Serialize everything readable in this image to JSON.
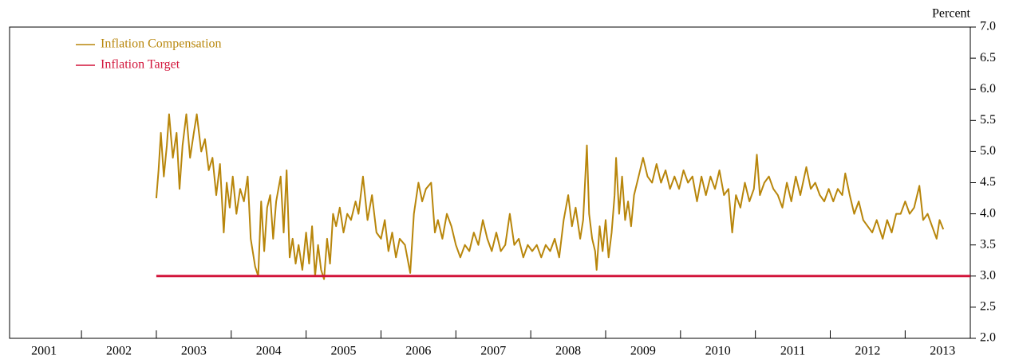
{
  "chart_data": {
    "type": "line",
    "y_label": "Percent",
    "xlim": [
      2001.04,
      2013.87
    ],
    "ylim": [
      2,
      7
    ],
    "xticks": [
      {
        "value": 2001.5,
        "label": "2001"
      },
      {
        "value": 2002.5,
        "label": "2002"
      },
      {
        "value": 2003.5,
        "label": "2003"
      },
      {
        "value": 2004.5,
        "label": "2004"
      },
      {
        "value": 2005.5,
        "label": "2005"
      },
      {
        "value": 2006.5,
        "label": "2006"
      },
      {
        "value": 2007.5,
        "label": "2007"
      },
      {
        "value": 2008.5,
        "label": "2008"
      },
      {
        "value": 2009.5,
        "label": "2009"
      },
      {
        "value": 2010.5,
        "label": "2010"
      },
      {
        "value": 2011.5,
        "label": "2011"
      },
      {
        "value": 2012.5,
        "label": "2012"
      },
      {
        "value": 2013.5,
        "label": "2013"
      }
    ],
    "x_boundary_ticks": [
      2002,
      2003,
      2004,
      2005,
      2006,
      2007,
      2008,
      2009,
      2010,
      2011,
      2012,
      2013
    ],
    "yticks": [
      {
        "value": 2,
        "label": "2.0"
      },
      {
        "value": 2.5,
        "label": "2.5"
      },
      {
        "value": 3,
        "label": "3.0"
      },
      {
        "value": 3.5,
        "label": "3.5"
      },
      {
        "value": 4,
        "label": "4.0"
      },
      {
        "value": 4.5,
        "label": "4.5"
      },
      {
        "value": 5,
        "label": "5.0"
      },
      {
        "value": 5.5,
        "label": "5.5"
      },
      {
        "value": 6,
        "label": "6.0"
      },
      {
        "value": 6.5,
        "label": "6.5"
      },
      {
        "value": 7,
        "label": "7.0"
      }
    ],
    "legend": "upper left",
    "series": [
      {
        "name": "Inflation Compensation",
        "color": "#b8860b",
        "x": [
          2003.0,
          2003.03,
          2003.06,
          2003.1,
          2003.14,
          2003.17,
          2003.22,
          2003.27,
          2003.31,
          2003.35,
          2003.4,
          2003.45,
          2003.5,
          2003.54,
          2003.6,
          2003.65,
          2003.7,
          2003.75,
          2003.8,
          2003.85,
          2003.9,
          2003.94,
          2003.98,
          2004.02,
          2004.07,
          2004.12,
          2004.17,
          2004.22,
          2004.26,
          2004.32,
          2004.36,
          2004.4,
          2004.44,
          2004.48,
          2004.52,
          2004.56,
          2004.6,
          2004.66,
          2004.7,
          2004.74,
          2004.78,
          2004.82,
          2004.86,
          2004.9,
          2004.95,
          2005.0,
          2005.04,
          2005.08,
          2005.12,
          2005.16,
          2005.2,
          2005.24,
          2005.28,
          2005.32,
          2005.36,
          2005.4,
          2005.45,
          2005.5,
          2005.55,
          2005.6,
          2005.66,
          2005.7,
          2005.76,
          2005.82,
          2005.88,
          2005.94,
          2006.0,
          2006.05,
          2006.1,
          2006.15,
          2006.2,
          2006.25,
          2006.32,
          2006.39,
          2006.44,
          2006.5,
          2006.55,
          2006.6,
          2006.67,
          2006.72,
          2006.76,
          2006.82,
          2006.88,
          2006.94,
          2007.0,
          2007.06,
          2007.12,
          2007.18,
          2007.24,
          2007.3,
          2007.36,
          2007.42,
          2007.48,
          2007.54,
          2007.6,
          2007.66,
          2007.72,
          2007.78,
          2007.84,
          2007.9,
          2007.96,
          2008.02,
          2008.08,
          2008.14,
          2008.2,
          2008.26,
          2008.32,
          2008.38,
          2008.44,
          2008.5,
          2008.55,
          2008.6,
          2008.66,
          2008.7,
          2008.75,
          2008.78,
          2008.82,
          2008.86,
          2008.88,
          2008.92,
          2008.96,
          2009.0,
          2009.04,
          2009.08,
          2009.12,
          2009.14,
          2009.18,
          2009.22,
          2009.26,
          2009.3,
          2009.34,
          2009.38,
          2009.44,
          2009.5,
          2009.56,
          2009.62,
          2009.68,
          2009.74,
          2009.8,
          2009.86,
          2009.92,
          2009.98,
          2010.04,
          2010.1,
          2010.16,
          2010.22,
          2010.28,
          2010.34,
          2010.4,
          2010.46,
          2010.52,
          2010.58,
          2010.64,
          2010.69,
          2010.74,
          2010.8,
          2010.86,
          2010.92,
          2010.98,
          2011.02,
          2011.06,
          2011.12,
          2011.18,
          2011.24,
          2011.3,
          2011.36,
          2011.42,
          2011.48,
          2011.54,
          2011.6,
          2011.68,
          2011.74,
          2011.8,
          2011.86,
          2011.92,
          2011.98,
          2012.04,
          2012.1,
          2012.16,
          2012.2,
          2012.26,
          2012.32,
          2012.38,
          2012.44,
          2012.5,
          2012.56,
          2012.62,
          2012.7,
          2012.76,
          2012.82,
          2012.88,
          2012.94,
          2013.0,
          2013.06,
          2013.12,
          2013.19,
          2013.24,
          2013.3,
          2013.36,
          2013.42,
          2013.46,
          2013.51
        ],
        "values": [
          4.25,
          4.7,
          5.3,
          4.6,
          5.1,
          5.6,
          4.9,
          5.3,
          4.4,
          5.1,
          5.6,
          4.9,
          5.3,
          5.6,
          5.0,
          5.2,
          4.7,
          4.9,
          4.3,
          4.8,
          3.7,
          4.5,
          4.1,
          4.6,
          4.0,
          4.4,
          4.2,
          4.6,
          3.6,
          3.15,
          3.0,
          4.2,
          3.4,
          4.1,
          4.3,
          3.6,
          4.2,
          4.6,
          3.7,
          4.7,
          3.3,
          3.6,
          3.2,
          3.5,
          3.1,
          3.7,
          3.2,
          3.8,
          3.0,
          3.5,
          3.1,
          2.95,
          3.6,
          3.2,
          4.0,
          3.8,
          4.1,
          3.7,
          4.0,
          3.9,
          4.2,
          4.0,
          4.6,
          3.9,
          4.3,
          3.7,
          3.6,
          3.9,
          3.4,
          3.7,
          3.3,
          3.6,
          3.5,
          3.05,
          4.0,
          4.5,
          4.2,
          4.4,
          4.5,
          3.7,
          3.9,
          3.6,
          4.0,
          3.8,
          3.5,
          3.3,
          3.5,
          3.4,
          3.7,
          3.5,
          3.9,
          3.6,
          3.4,
          3.7,
          3.4,
          3.5,
          4.0,
          3.5,
          3.6,
          3.3,
          3.5,
          3.4,
          3.5,
          3.3,
          3.5,
          3.4,
          3.6,
          3.3,
          3.9,
          4.3,
          3.8,
          4.1,
          3.6,
          3.9,
          5.1,
          4.0,
          3.6,
          3.4,
          3.1,
          3.8,
          3.4,
          3.9,
          3.3,
          3.7,
          4.3,
          4.9,
          4.0,
          4.6,
          3.9,
          4.2,
          3.8,
          4.3,
          4.6,
          4.9,
          4.6,
          4.5,
          4.8,
          4.5,
          4.7,
          4.4,
          4.6,
          4.4,
          4.7,
          4.5,
          4.6,
          4.2,
          4.6,
          4.3,
          4.6,
          4.4,
          4.7,
          4.3,
          4.4,
          3.7,
          4.3,
          4.1,
          4.5,
          4.2,
          4.4,
          4.95,
          4.3,
          4.5,
          4.6,
          4.4,
          4.3,
          4.1,
          4.5,
          4.2,
          4.6,
          4.3,
          4.75,
          4.4,
          4.5,
          4.3,
          4.2,
          4.4,
          4.2,
          4.4,
          4.3,
          4.65,
          4.3,
          4.0,
          4.2,
          3.9,
          3.8,
          3.7,
          3.9,
          3.6,
          3.9,
          3.7,
          4.0,
          4.0,
          4.2,
          4.0,
          4.1,
          4.45,
          3.9,
          4.0,
          3.8,
          3.6,
          3.9,
          3.75
        ]
      },
      {
        "name": "Inflation Target",
        "color": "#d2143a",
        "x": [
          2003.0,
          2013.87
        ],
        "values": [
          3,
          3
        ]
      }
    ]
  }
}
